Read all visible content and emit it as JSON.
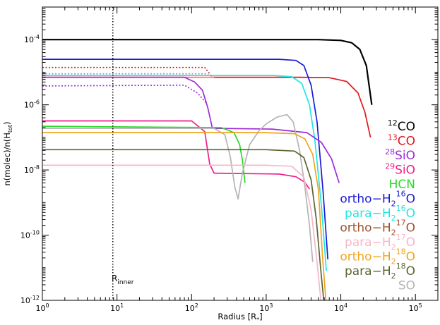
{
  "chart_data": {
    "type": "line",
    "xlabel": "Radius [R",
    "xlabel_sub": "*",
    "xlabel_tail": "]",
    "ylabel": "n(molec)/n(H",
    "ylabel_sub": "tot",
    "ylabel_tail": ")",
    "x_scale": "log",
    "y_scale": "log",
    "xlim": [
      1,
      200000
    ],
    "ylim": [
      1e-12,
      0.001
    ],
    "x_ticks": [
      {
        "v": 1,
        "base": "10",
        "exp": "0"
      },
      {
        "v": 10,
        "base": "10",
        "exp": "1"
      },
      {
        "v": 100,
        "base": "10",
        "exp": "2"
      },
      {
        "v": 1000,
        "base": "10",
        "exp": "3"
      },
      {
        "v": 10000,
        "base": "10",
        "exp": "4"
      },
      {
        "v": 100000,
        "base": "10",
        "exp": "5"
      }
    ],
    "y_ticks": [
      {
        "v": 1e-12,
        "base": "10",
        "exp": "-12"
      },
      {
        "v": 1e-10,
        "base": "10",
        "exp": "-10"
      },
      {
        "v": 1e-08,
        "base": "10",
        "exp": "-8"
      },
      {
        "v": 1e-06,
        "base": "10",
        "exp": "-6"
      },
      {
        "v": 0.0001,
        "base": "10",
        "exp": "-4"
      }
    ],
    "grid": false,
    "legend_position": "right",
    "annotation": {
      "text": "R",
      "sub": "inner",
      "x": 8.8
    },
    "series": [
      {
        "color": "#000000",
        "dash": false,
        "points": [
          [
            1,
            0.0001
          ],
          [
            5000,
            0.0001
          ],
          [
            10000,
            9.5e-05
          ],
          [
            14000,
            8e-05
          ],
          [
            18000,
            5e-05
          ],
          [
            22000,
            1.6e-05
          ],
          [
            26000,
            1e-06
          ]
        ]
      },
      {
        "color": "#e0161b",
        "dash": true,
        "points": [
          [
            1,
            1.4e-05
          ],
          [
            150,
            1.4e-05
          ],
          [
            190,
            7e-06
          ]
        ]
      },
      {
        "color": "#e0161b",
        "dash": false,
        "points": [
          [
            190,
            7e-06
          ],
          [
            3000,
            7e-06
          ],
          [
            7000,
            6.8e-06
          ],
          [
            12000,
            5.2e-06
          ],
          [
            17000,
            2.3e-06
          ],
          [
            21000,
            6e-07
          ],
          [
            25000,
            1e-07
          ]
        ]
      },
      {
        "color": "#1a1ad8",
        "dash": false,
        "points": [
          [
            1,
            2.5e-05
          ],
          [
            1500,
            2.5e-05
          ],
          [
            2500,
            2.3e-05
          ],
          [
            3200,
            1.6e-05
          ],
          [
            4000,
            4e-06
          ],
          [
            4800,
            3e-07
          ],
          [
            5800,
            2e-09
          ],
          [
            6700,
            1.8e-11
          ]
        ]
      },
      {
        "color": "#9c9c9c",
        "dash": true,
        "points": [
          [
            1,
            9e-06
          ],
          [
            150,
            9e-06
          ],
          [
            190,
            7.5e-06
          ]
        ]
      },
      {
        "color": "#20e6e6",
        "dash": false,
        "points": [
          [
            1,
            8e-06
          ],
          [
            1200,
            8e-06
          ],
          [
            2200,
            7.3e-06
          ],
          [
            3000,
            4.5e-06
          ],
          [
            3800,
            1e-06
          ],
          [
            4500,
            8e-08
          ],
          [
            5500,
            8e-10
          ],
          [
            6400,
            8e-12
          ]
        ]
      },
      {
        "color": "#ff7070",
        "dash": false,
        "points": [
          [
            1,
            7e-06
          ],
          [
            200,
            7e-06
          ]
        ]
      },
      {
        "color": "#9b2cd8",
        "dash": true,
        "points": [
          [
            1,
            3.8e-06
          ],
          [
            80,
            4e-06
          ],
          [
            120,
            2.3e-06
          ],
          [
            160,
            1.1e-06
          ]
        ]
      },
      {
        "color": "#9b2cd8",
        "dash": false,
        "points": [
          [
            1,
            7e-06
          ],
          [
            80,
            7e-06
          ],
          [
            110,
            5e-06
          ],
          [
            140,
            2.8e-06
          ],
          [
            165,
            8e-07
          ],
          [
            190,
            1.9e-07
          ],
          [
            1200,
            1.8e-07
          ],
          [
            3500,
            1.4e-07
          ],
          [
            5500,
            7e-08
          ],
          [
            7500,
            2.2e-08
          ],
          [
            9500,
            4e-09
          ]
        ]
      },
      {
        "color": "#ee1f8a",
        "dash": false,
        "points": [
          [
            1,
            3.2e-07
          ],
          [
            100,
            3.2e-07
          ],
          [
            150,
            1.5e-07
          ],
          [
            175,
            1.5e-08
          ],
          [
            200,
            8e-09
          ],
          [
            1500,
            7.5e-09
          ],
          [
            2500,
            6.2e-09
          ],
          [
            3300,
            4.2e-09
          ],
          [
            3800,
            2.6e-09
          ]
        ]
      },
      {
        "color": "#2bd82b",
        "dash": false,
        "points": [
          [
            1,
            2.2e-07
          ],
          [
            250,
            2e-07
          ],
          [
            370,
            1.4e-07
          ],
          [
            440,
            6e-08
          ],
          [
            480,
            2e-08
          ],
          [
            520,
            4e-09
          ]
        ]
      },
      {
        "color": "#b4b4b4",
        "dash": false,
        "points": [
          [
            1,
            1.9e-07
          ],
          [
            200,
            1.9e-07
          ],
          [
            280,
            1.2e-07
          ],
          [
            330,
            2.5e-08
          ],
          [
            380,
            3e-09
          ],
          [
            420,
            1.3e-09
          ],
          [
            480,
            8e-09
          ],
          [
            600,
            6e-08
          ],
          [
            800,
            1.6e-07
          ],
          [
            1000,
            2.6e-07
          ],
          [
            1400,
            4.2e-07
          ],
          [
            1900,
            5e-07
          ],
          [
            2300,
            3e-07
          ],
          [
            2800,
            4e-08
          ],
          [
            3300,
            3e-09
          ],
          [
            3800,
            2e-10
          ],
          [
            4200,
            1.5e-11
          ]
        ]
      },
      {
        "color": "#f2a41d",
        "dash": false,
        "points": [
          [
            1,
            1.4e-07
          ],
          [
            1000,
            1.4e-07
          ],
          [
            2400,
            1.3e-07
          ],
          [
            3300,
            9e-08
          ],
          [
            4200,
            3e-08
          ],
          [
            5000,
            2.5e-09
          ],
          [
            5700,
            2e-11
          ],
          [
            6300,
            1e-12
          ]
        ]
      },
      {
        "color": "#5a6530",
        "dash": false,
        "points": [
          [
            1,
            4.2e-08
          ],
          [
            1000,
            4.2e-08
          ],
          [
            2400,
            3.8e-08
          ],
          [
            3200,
            2.4e-08
          ],
          [
            4000,
            5e-09
          ],
          [
            4700,
            3e-10
          ],
          [
            5400,
            8e-12
          ],
          [
            5900,
            1e-12
          ]
        ]
      },
      {
        "color": "#f7b7c8",
        "dash": false,
        "points": [
          [
            1,
            1.4e-08
          ],
          [
            1000,
            1.4e-08
          ],
          [
            2200,
            1.3e-08
          ],
          [
            3200,
            6e-09
          ],
          [
            4000,
            6e-10
          ],
          [
            4800,
            1.5e-11
          ],
          [
            5400,
            1e-12
          ]
        ]
      }
    ],
    "legend": [
      {
        "sup": "12",
        "text": "CO",
        "sub": "",
        "tail": "",
        "color": "#000000"
      },
      {
        "sup": "13",
        "text": "CO",
        "sub": "",
        "tail": "",
        "color": "#e0161b"
      },
      {
        "sup": "28",
        "text": "SiO",
        "sub": "",
        "tail": "",
        "color": "#9b2cd8"
      },
      {
        "sup": "29",
        "text": "SiO",
        "sub": "",
        "tail": "",
        "color": "#ee1f8a"
      },
      {
        "sup": "",
        "text": "HCN",
        "sub": "",
        "tail": "",
        "color": "#2bd82b"
      },
      {
        "sup": "16",
        "text": "ortho−H",
        "sub": "2",
        "tail": "O",
        "color": "#1a1ad8"
      },
      {
        "sup": "16",
        "text": "para−H",
        "sub": "2",
        "tail": "O",
        "color": "#20e6e6"
      },
      {
        "sup": "17",
        "text": "ortho−H",
        "sub": "2",
        "tail": "O",
        "color": "#a0522d"
      },
      {
        "sup": "17",
        "text": "para−H",
        "sub": "2",
        "tail": "O",
        "color": "#f7b7c8"
      },
      {
        "sup": "18",
        "text": "ortho−H",
        "sub": "2",
        "tail": "O",
        "color": "#f2a41d"
      },
      {
        "sup": "18",
        "text": "para−H",
        "sub": "2",
        "tail": "O",
        "color": "#5a6530"
      },
      {
        "sup": "",
        "text": "SO",
        "sub": "",
        "tail": "",
        "color": "#b4b4b4"
      }
    ]
  }
}
